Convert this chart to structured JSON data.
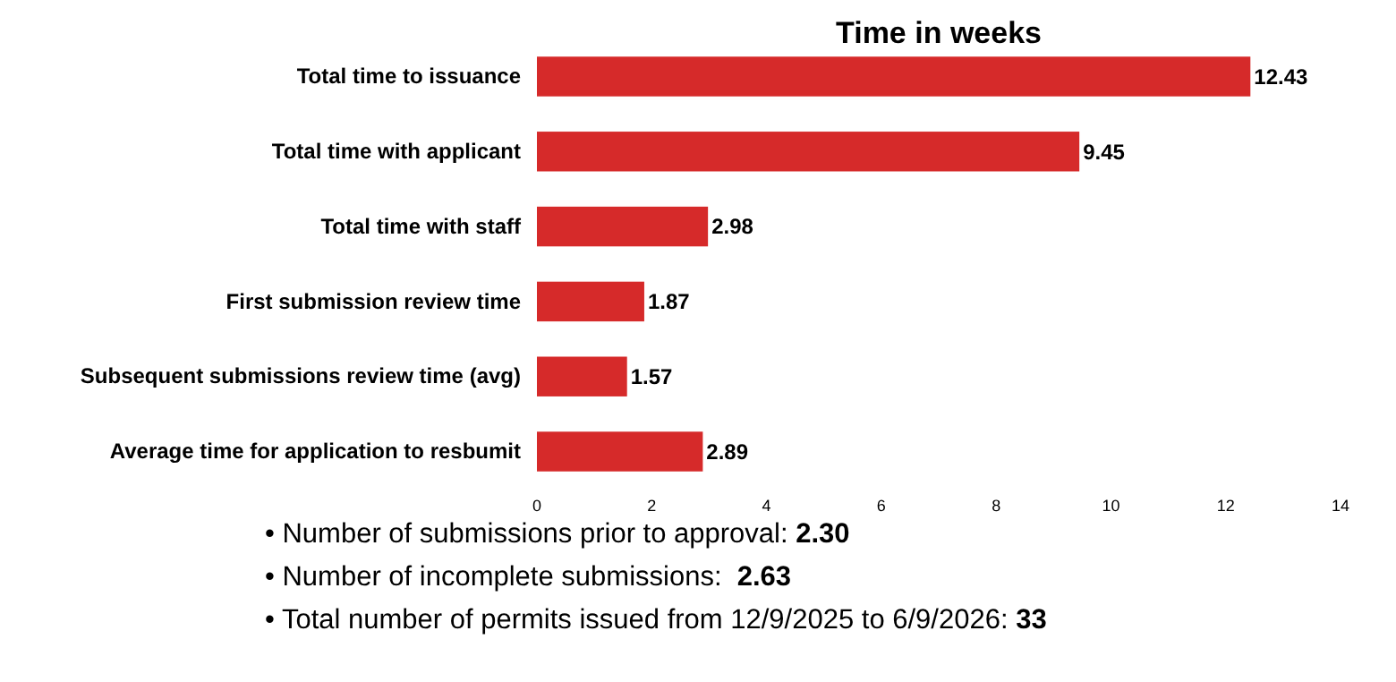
{
  "chart_data": {
    "type": "bar",
    "orientation": "horizontal",
    "title": "Time in weeks",
    "categories": [
      "Total time to issuance",
      "Total time with applicant",
      "Total time with staff",
      "First submission review time",
      "Subsequent submissions review time (avg)",
      "Average time for application to resbumit"
    ],
    "values": [
      12.43,
      9.45,
      2.98,
      1.87,
      1.57,
      2.89
    ],
    "color": "#d62a2a",
    "data_labels": true,
    "xlim": [
      0,
      14
    ],
    "xticks": [
      0,
      2,
      4,
      6,
      8,
      10,
      12,
      14
    ],
    "grid": false,
    "annotations": [
      "• Number of submissions prior to approval: 2.30",
      "• Number of incomplete submissions:  2.63",
      "• Total number of permits issued from 12/9/2025 to 6/9/2026: 33"
    ]
  }
}
